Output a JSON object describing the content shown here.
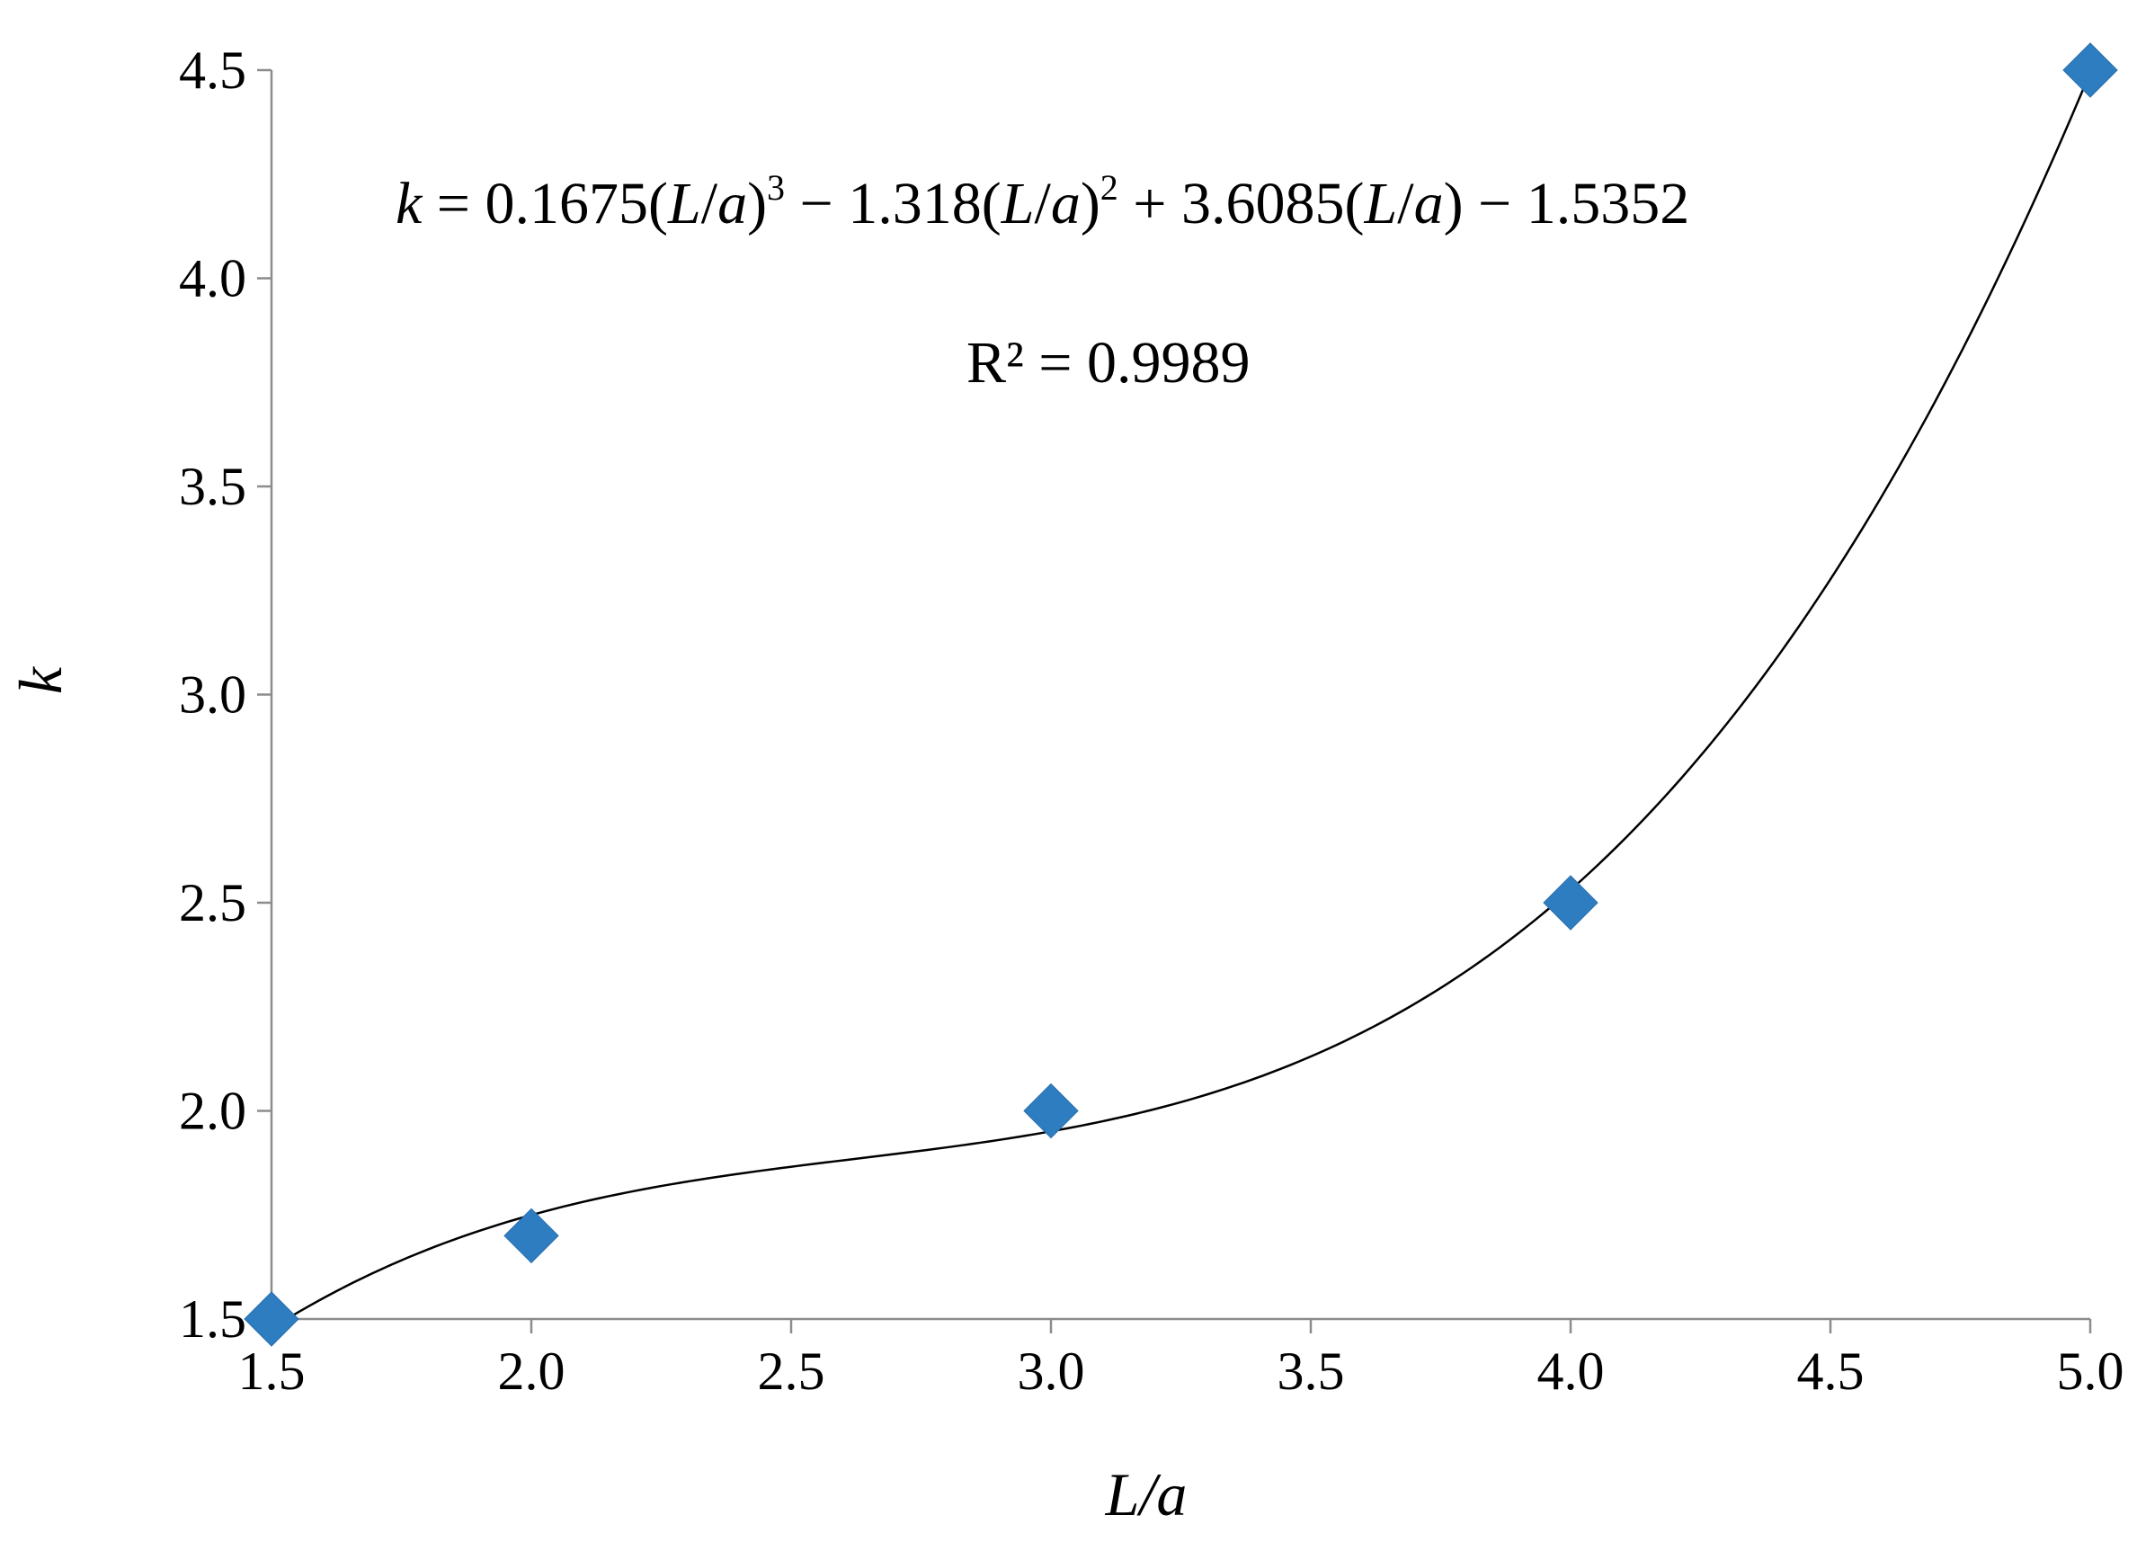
{
  "chart_data": {
    "type": "scatter",
    "x": [
      1.5,
      2.0,
      3.0,
      4.0,
      5.0
    ],
    "y": [
      1.5,
      1.7,
      2.0,
      2.5,
      4.5
    ],
    "xlabel": "L/a",
    "ylabel": "k",
    "xlim": [
      1.5,
      5.0
    ],
    "ylim": [
      1.5,
      4.5
    ],
    "xticks": [
      "1.5",
      "2.0",
      "2.5",
      "3.0",
      "3.5",
      "4.0",
      "4.5",
      "5.0"
    ],
    "yticks": [
      "1.5",
      "2.0",
      "2.5",
      "3.0",
      "3.5",
      "4.0",
      "4.5"
    ],
    "trendline": {
      "type": "polynomial",
      "order": 3,
      "coefficients": [
        0.1675,
        -1.318,
        3.6085,
        -1.5352
      ],
      "equation": {
        "k": "k",
        "eq": " = 0.1675(",
        "L1": "L",
        "slash1": "/",
        "a1": "a",
        "p1": ")",
        "exp3": "3",
        "mid1": " − 1.318(",
        "L2": "L",
        "slash2": "/",
        "a2": "a",
        "p2": ")",
        "exp2": "2",
        "mid2": " + 3.6085(",
        "L3": "L",
        "slash3": "/",
        "a3": "a",
        "tail": ") − 1.5352"
      },
      "r_squared": "R² = 0.9989"
    },
    "grid": false,
    "legend": "none",
    "marker_shape": "diamond",
    "marker_color": "#2e7dc0",
    "line_color": "#000000",
    "axis_color": "#8c8c8c"
  }
}
